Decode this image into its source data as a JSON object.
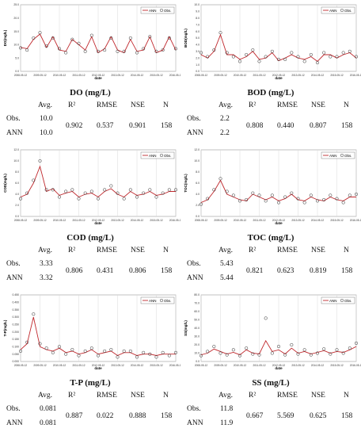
{
  "legend": {
    "ann": "ANN",
    "obs": "Obs."
  },
  "xlabel": "date",
  "stats_header": {
    "avg": "Avg.",
    "r2": "R²",
    "rmse": "RMSE",
    "nse": "NSE",
    "n": "N"
  },
  "row_labels": {
    "obs": "Obs.",
    "ann": "ANN"
  },
  "panels": [
    {
      "title": "DO (mg/L)",
      "ylabel": "DO(mg/L)",
      "yticks": [
        "0.0",
        "5.0",
        "10.0",
        "15.0",
        "20.0",
        "25.0"
      ],
      "avg_obs": "10.0",
      "avg_ann": "10.0",
      "r2": "0.902",
      "rmse": "0.537",
      "nse": "0.901",
      "n": "158"
    },
    {
      "title": "BOD (mg/L)",
      "ylabel": "BOD(mg/L)",
      "yticks": [
        "0.0",
        "1.0",
        "2.0",
        "3.0",
        "4.0",
        "5.0",
        "6.0",
        "7.0",
        "8.0",
        "9.0",
        "10.0"
      ],
      "avg_obs": "2.2",
      "avg_ann": "2.2",
      "r2": "0.808",
      "rmse": "0.440",
      "nse": "0.807",
      "n": "158"
    },
    {
      "title": "COD (mg/L)",
      "ylabel": "COD(mg/L)",
      "yticks": [
        "0.0",
        "2.0",
        "4.0",
        "6.0",
        "8.0",
        "10.0",
        "12.0"
      ],
      "avg_obs": "3.33",
      "avg_ann": "3.32",
      "r2": "0.806",
      "rmse": "0.431",
      "nse": "0.806",
      "n": "158"
    },
    {
      "title": "TOC (mg/L)",
      "ylabel": "TOC(mg/L)",
      "yticks": [
        "0.0",
        "2.0",
        "4.0",
        "6.0",
        "8.0",
        "10.0",
        "12.0"
      ],
      "avg_obs": "5.43",
      "avg_ann": "5.44",
      "r2": "0.821",
      "rmse": "0.623",
      "nse": "0.819",
      "n": "158"
    },
    {
      "title": "T-P (mg/L)",
      "ylabel": "T-P(mg/L)",
      "yticks": [
        "0.000",
        "0.050",
        "0.100",
        "0.150",
        "0.200",
        "0.250",
        "0.300",
        "0.350",
        "0.400",
        "0.450"
      ],
      "avg_obs": "0.081",
      "avg_ann": "0.081",
      "r2": "0.887",
      "rmse": "0.022",
      "nse": "0.888",
      "n": "158"
    },
    {
      "title": "SS (mg/L)",
      "ylabel": "SS(mg/L)",
      "yticks": [
        "0.0",
        "10.0",
        "20.0",
        "30.0",
        "40.0",
        "50.0",
        "60.0",
        "70.0",
        "80.0"
      ],
      "avg_obs": "11.8",
      "avg_ann": "11.9",
      "r2": "0.667",
      "rmse": "5.569",
      "nse": "0.625",
      "n": "158"
    }
  ],
  "xticks": [
    "2008-05-12",
    "2009-05-12",
    "2010-05-12",
    "2011-05-12",
    "2012-05-12",
    "2013-05-12",
    "2014-05-12",
    "2015-05-12",
    "2016-05-12"
  ],
  "chart_data": [
    {
      "type": "line",
      "title": "DO (mg/L)",
      "xlabel": "date",
      "ylabel": "DO(mg/L)",
      "ylim": [
        0,
        25
      ],
      "categories": [
        "2008-05",
        "2008-09",
        "2009-01",
        "2009-05",
        "2009-09",
        "2010-01",
        "2010-05",
        "2010-09",
        "2011-01",
        "2011-05",
        "2011-09",
        "2012-01",
        "2012-05",
        "2012-09",
        "2013-01",
        "2013-05",
        "2013-09",
        "2014-01",
        "2014-05",
        "2014-09",
        "2015-01",
        "2015-05",
        "2015-09",
        "2016-01",
        "2016-05"
      ],
      "series": [
        {
          "name": "ANN",
          "values": [
            9,
            8.5,
            12,
            14,
            9,
            13,
            8,
            7.5,
            12,
            10,
            8,
            13,
            7,
            8.5,
            13,
            8,
            7,
            12,
            7.5,
            8,
            13,
            7,
            8,
            13,
            8
          ]
        },
        {
          "name": "Obs.",
          "values": [
            8.8,
            8,
            12.5,
            14.5,
            9.5,
            12.5,
            8.5,
            7,
            12,
            10.5,
            7.5,
            13.5,
            7.5,
            8,
            12.5,
            7.5,
            7.5,
            12.5,
            7,
            8.5,
            13,
            7.5,
            8,
            12.5,
            8.5
          ]
        }
      ]
    },
    {
      "type": "line",
      "title": "BOD (mg/L)",
      "xlabel": "date",
      "ylabel": "BOD(mg/L)",
      "ylim": [
        0,
        10
      ],
      "categories": [
        "2008-05",
        "2008-09",
        "2009-01",
        "2009-05",
        "2009-09",
        "2010-01",
        "2010-05",
        "2010-09",
        "2011-01",
        "2011-05",
        "2011-09",
        "2012-01",
        "2012-05",
        "2012-09",
        "2013-01",
        "2013-05",
        "2013-09",
        "2014-01",
        "2014-05",
        "2014-09",
        "2015-01",
        "2015-05",
        "2015-09",
        "2016-01",
        "2016-05"
      ],
      "series": [
        {
          "name": "ANN",
          "values": [
            2.5,
            2,
            3,
            5.5,
            2.5,
            2.5,
            1.8,
            2.2,
            3,
            1.8,
            2,
            2.8,
            1.6,
            2,
            2.5,
            2,
            1.8,
            2.2,
            1.5,
            2.5,
            2.5,
            2,
            2.5,
            2.8,
            2
          ]
        },
        {
          "name": "Obs.",
          "values": [
            2.8,
            2.2,
            3.2,
            5.8,
            2.8,
            2.2,
            1.5,
            2.5,
            3.2,
            1.5,
            2.2,
            3,
            1.8,
            1.8,
            2.8,
            2.2,
            1.5,
            2.5,
            1.3,
            2.8,
            2.2,
            2.2,
            2.8,
            3,
            2.2
          ]
        }
      ]
    },
    {
      "type": "line",
      "title": "COD (mg/L)",
      "xlabel": "date",
      "ylabel": "COD(mg/L)",
      "ylim": [
        0,
        12
      ],
      "categories": [
        "2008-05",
        "2008-09",
        "2009-01",
        "2009-05",
        "2009-09",
        "2010-01",
        "2010-05",
        "2010-09",
        "2011-01",
        "2011-05",
        "2011-09",
        "2012-01",
        "2012-05",
        "2012-09",
        "2013-01",
        "2013-05",
        "2013-09",
        "2014-01",
        "2014-05",
        "2014-09",
        "2015-01",
        "2015-05",
        "2015-09",
        "2016-01",
        "2016-05"
      ],
      "series": [
        {
          "name": "ANN",
          "values": [
            3.5,
            4,
            6,
            9,
            4.5,
            5,
            3.8,
            4.2,
            4.5,
            3.5,
            4,
            4.2,
            3.5,
            4.5,
            5,
            4,
            3.5,
            4.5,
            3.8,
            4,
            4.5,
            3.8,
            4,
            4.5,
            4.5
          ]
        },
        {
          "name": "Obs.",
          "values": [
            3.2,
            4.2,
            6.5,
            10,
            4.8,
            4.8,
            3.5,
            4.5,
            4.8,
            3.2,
            4.2,
            4.5,
            3.2,
            4.8,
            5.5,
            4.2,
            3.2,
            4.8,
            3.5,
            4.2,
            4.8,
            3.5,
            4.2,
            4.8,
            4.8
          ]
        }
      ]
    },
    {
      "type": "line",
      "title": "TOC (mg/L)",
      "xlabel": "date",
      "ylabel": "TOC(mg/L)",
      "ylim": [
        0,
        12
      ],
      "categories": [
        "2008-05",
        "2008-09",
        "2009-01",
        "2009-05",
        "2009-09",
        "2010-01",
        "2010-05",
        "2010-09",
        "2011-01",
        "2011-05",
        "2011-09",
        "2012-01",
        "2012-05",
        "2012-09",
        "2013-01",
        "2013-05",
        "2013-09",
        "2014-01",
        "2014-05",
        "2014-09",
        "2015-01",
        "2015-05",
        "2015-09",
        "2016-01",
        "2016-05"
      ],
      "series": [
        {
          "name": "ANN",
          "values": [
            2.5,
            3,
            4.5,
            6.5,
            4,
            3.5,
            3,
            2.8,
            4,
            3.5,
            3,
            3.5,
            2.8,
            3.2,
            4,
            3,
            2.8,
            3.5,
            3,
            2.8,
            3.5,
            3,
            2.8,
            3.5,
            3.5
          ]
        },
        {
          "name": "Obs.",
          "values": [
            2.2,
            3.2,
            4.8,
            6.8,
            4.5,
            3.8,
            2.8,
            3,
            4.2,
            3.8,
            2.8,
            3.8,
            2.5,
            3.5,
            4.2,
            3.2,
            2.5,
            3.8,
            2.8,
            3,
            3.8,
            3.2,
            2.5,
            3.8,
            4
          ]
        }
      ]
    },
    {
      "type": "line",
      "title": "T-P (mg/L)",
      "xlabel": "date",
      "ylabel": "T-P(mg/L)",
      "ylim": [
        0,
        0.45
      ],
      "categories": [
        "2008-05",
        "2008-09",
        "2009-01",
        "2009-05",
        "2009-09",
        "2010-01",
        "2010-05",
        "2010-09",
        "2011-01",
        "2011-05",
        "2011-09",
        "2012-01",
        "2012-05",
        "2012-09",
        "2013-01",
        "2013-05",
        "2013-09",
        "2014-01",
        "2014-05",
        "2014-09",
        "2015-01",
        "2015-05",
        "2015-09",
        "2016-01",
        "2016-05"
      ],
      "series": [
        {
          "name": "ANN",
          "values": [
            0.08,
            0.12,
            0.3,
            0.1,
            0.08,
            0.07,
            0.09,
            0.06,
            0.07,
            0.05,
            0.06,
            0.08,
            0.05,
            0.06,
            0.07,
            0.04,
            0.06,
            0.06,
            0.04,
            0.05,
            0.05,
            0.04,
            0.05,
            0.05,
            0.05
          ]
        },
        {
          "name": "Obs.",
          "values": [
            0.07,
            0.13,
            0.32,
            0.12,
            0.09,
            0.06,
            0.1,
            0.05,
            0.08,
            0.04,
            0.07,
            0.09,
            0.04,
            0.07,
            0.08,
            0.03,
            0.07,
            0.07,
            0.03,
            0.06,
            0.05,
            0.03,
            0.06,
            0.04,
            0.06
          ]
        }
      ]
    },
    {
      "type": "line",
      "title": "SS (mg/L)",
      "xlabel": "date",
      "ylabel": "SS(mg/L)",
      "ylim": [
        0,
        80
      ],
      "categories": [
        "2008-05",
        "2008-09",
        "2009-01",
        "2009-05",
        "2009-09",
        "2010-01",
        "2010-05",
        "2010-09",
        "2011-01",
        "2011-05",
        "2011-09",
        "2012-01",
        "2012-05",
        "2012-09",
        "2013-01",
        "2013-05",
        "2013-09",
        "2014-01",
        "2014-05",
        "2014-09",
        "2015-01",
        "2015-05",
        "2015-09",
        "2016-01",
        "2016-05"
      ],
      "series": [
        {
          "name": "ANN",
          "values": [
            8,
            10,
            15,
            12,
            9,
            11,
            8,
            14,
            10,
            9,
            25,
            12,
            14,
            9,
            16,
            10,
            12,
            9,
            11,
            13,
            10,
            12,
            11,
            14,
            18
          ]
        },
        {
          "name": "Obs.",
          "values": [
            7,
            12,
            18,
            10,
            8,
            14,
            7,
            16,
            9,
            8,
            52,
            10,
            18,
            8,
            20,
            9,
            14,
            8,
            10,
            15,
            9,
            14,
            10,
            16,
            22
          ]
        }
      ]
    }
  ]
}
